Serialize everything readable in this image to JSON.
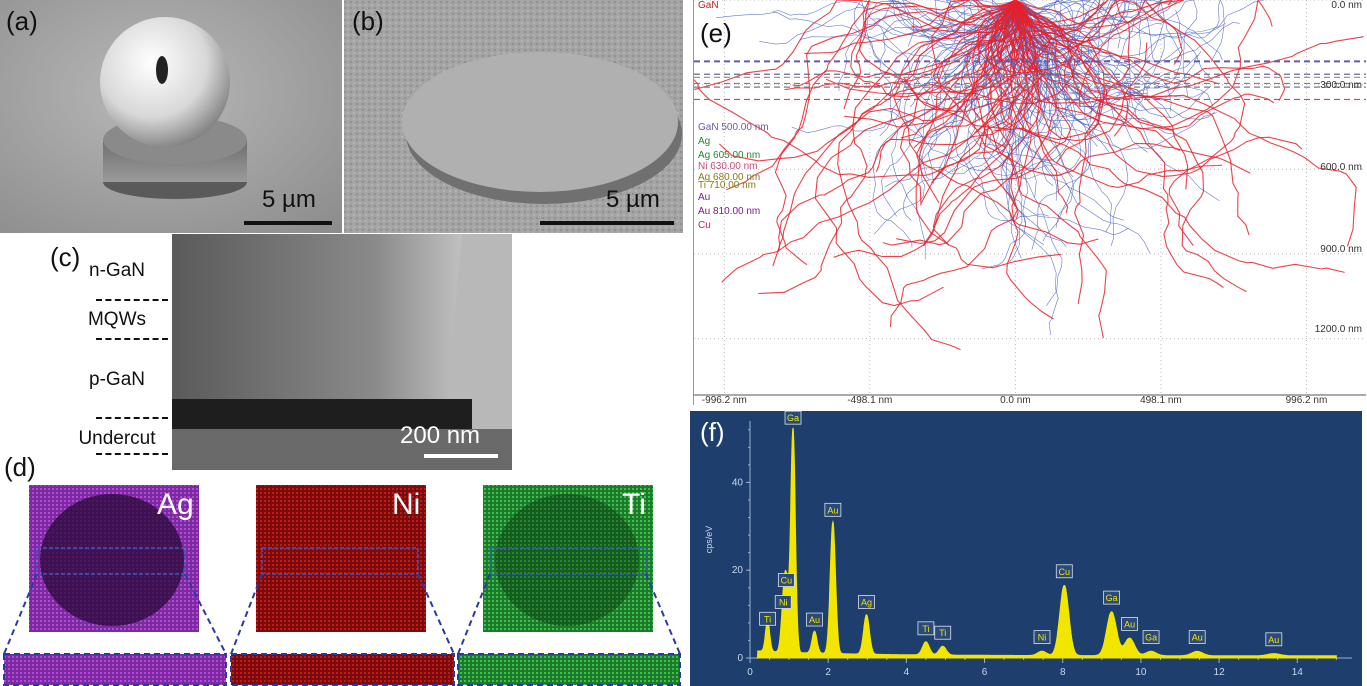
{
  "panels": {
    "a": {
      "label": "(a)",
      "scalebar": "5 µm"
    },
    "b": {
      "label": "(b)",
      "scalebar": "5 µm"
    },
    "c": {
      "label": "(c)",
      "scalebar": "200 nm",
      "layers": [
        "n-GaN",
        "MQWs",
        "p-GaN",
        "Undercut"
      ]
    },
    "d": {
      "label": "(d)",
      "maps": [
        "Ag",
        "Ni",
        "Ti"
      ]
    },
    "e": {
      "label": "(e)"
    },
    "f": {
      "label": "(f)"
    }
  },
  "colors": {
    "ag_map": "#6a1f8a",
    "ni_map": "#8a1010",
    "ti_map": "#1f8a2f",
    "trajectory_backscatter": "#e8202a",
    "trajectory_absorbed": "#4a62c0",
    "eds_bg": "#1e3f6e",
    "eds_spectrum": "#f2e600"
  },
  "chart_data": [
    {
      "type": "scatter",
      "title": "",
      "layer_labels": [
        {
          "text": "GaN"
        },
        {
          "text": "GaN 500.00 nm"
        },
        {
          "text": "Ag"
        },
        {
          "text": "Ag 605.00 nm"
        },
        {
          "text": "Ni 630.00 nm"
        },
        {
          "text": "Ag 680.00 nm"
        },
        {
          "text": "Ti 710.00 nm"
        },
        {
          "text": "Au"
        },
        {
          "text": "Au 810.00 nm"
        },
        {
          "text": "Cu"
        }
      ],
      "layer_depths_nm": [
        500,
        605,
        630,
        680,
        710,
        810
      ],
      "x_ticks": [
        "-996.2 nm",
        "-498.1 nm",
        "0.0 nm",
        "498.1 nm",
        "996.2 nm"
      ],
      "y_ticks": [
        "0.0 nm",
        "300.0 nm",
        "600.0 nm",
        "900.0 nm",
        "1200.0 nm"
      ],
      "xlim": [
        -1100,
        1200
      ],
      "ylim": [
        0,
        1400
      ]
    },
    {
      "type": "line",
      "ylabel": "cps/eV",
      "xlabel": "",
      "x_ticks": [
        0,
        2,
        4,
        6,
        8,
        10,
        12,
        14
      ],
      "y_ticks": [
        0,
        20,
        40
      ],
      "xlim": [
        0,
        15.4
      ],
      "ylim": [
        0,
        54
      ],
      "peaks": [
        {
          "label": "Ti",
          "x": 0.45,
          "y": 7
        },
        {
          "label": "Ni",
          "x": 0.85,
          "y": 9
        },
        {
          "label": "Cu",
          "x": 0.93,
          "y": 14
        },
        {
          "label": "Ga",
          "x": 1.1,
          "y": 51
        },
        {
          "label": "Au",
          "x": 1.65,
          "y": 5
        },
        {
          "label": "Au",
          "x": 2.12,
          "y": 30
        },
        {
          "label": "Ag",
          "x": 2.98,
          "y": 9
        },
        {
          "label": "Ti",
          "x": 4.5,
          "y": 3
        },
        {
          "label": "Ti",
          "x": 4.93,
          "y": 2
        },
        {
          "label": "Ni",
          "x": 7.47,
          "y": 1
        },
        {
          "label": "Cu",
          "x": 8.04,
          "y": 16
        },
        {
          "label": "Ga",
          "x": 9.25,
          "y": 10
        },
        {
          "label": "Au",
          "x": 9.71,
          "y": 4
        },
        {
          "label": "Ga",
          "x": 10.26,
          "y": 1
        },
        {
          "label": "Au",
          "x": 11.44,
          "y": 1
        },
        {
          "label": "Au",
          "x": 13.4,
          "y": 0.5
        }
      ]
    }
  ]
}
